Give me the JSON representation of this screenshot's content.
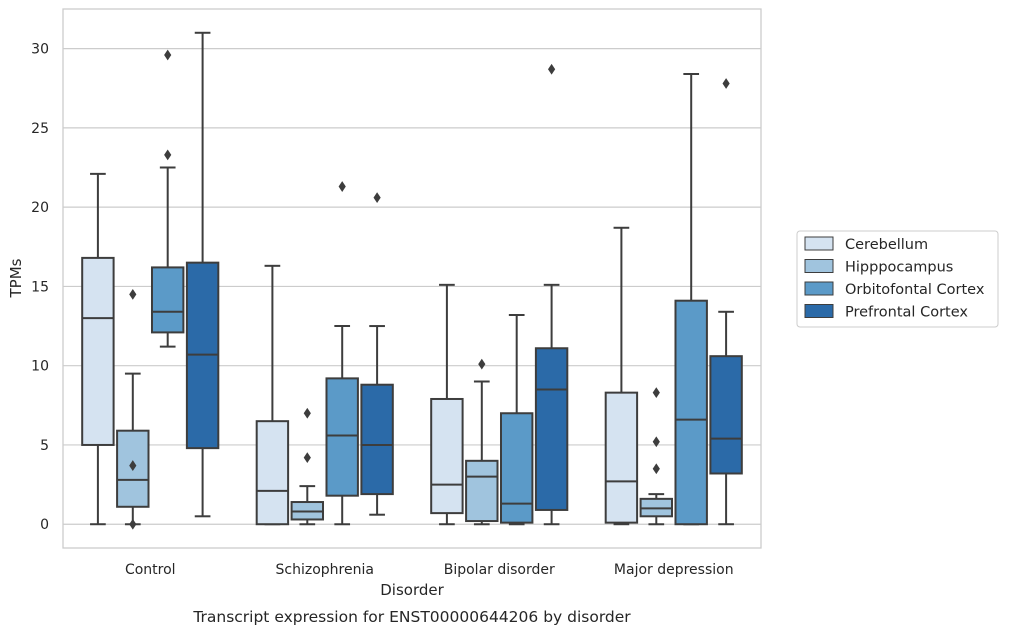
{
  "chart_data": {
    "type": "box",
    "categories": [
      "Control",
      "Schizophrenia",
      "Bipolar disorder",
      "Major depression"
    ],
    "xlabel": "Disorder",
    "ylabel": "TPMs",
    "caption": "Transcript expression for ENST00000644206 by disorder",
    "ylim": [
      -1.5,
      32.5
    ],
    "yticks": [
      0,
      5,
      10,
      15,
      20,
      25,
      30
    ],
    "grid": "horizontal",
    "legend_position": "right",
    "series": [
      {
        "name": "Cerebellum",
        "color": "#d5e3f1",
        "boxes": [
          {
            "min": 0.0,
            "q1": 5.0,
            "median": 13.0,
            "q3": 16.8,
            "max": 22.1,
            "outliers": []
          },
          {
            "min": 0.0,
            "q1": 0.0,
            "median": 2.1,
            "q3": 6.5,
            "max": 16.3,
            "outliers": []
          },
          {
            "min": 0.0,
            "q1": 0.7,
            "median": 2.5,
            "q3": 7.9,
            "max": 15.1,
            "outliers": []
          },
          {
            "min": 0.0,
            "q1": 0.1,
            "median": 2.7,
            "q3": 8.3,
            "max": 18.7,
            "outliers": []
          }
        ]
      },
      {
        "name": "Hipppocampus",
        "color": "#a0c4de",
        "boxes": [
          {
            "min": 0.0,
            "q1": 1.1,
            "median": 2.8,
            "q3": 5.9,
            "max": 9.5,
            "outliers": [
              14.5,
              3.7,
              0.0
            ]
          },
          {
            "min": 0.0,
            "q1": 0.3,
            "median": 0.8,
            "q3": 1.4,
            "max": 2.4,
            "outliers": [
              7.0,
              4.2
            ]
          },
          {
            "min": 0.0,
            "q1": 0.2,
            "median": 3.0,
            "q3": 4.0,
            "max": 9.0,
            "outliers": [
              10.1
            ]
          },
          {
            "min": 0.0,
            "q1": 0.5,
            "median": 1.0,
            "q3": 1.6,
            "max": 1.9,
            "outliers": [
              8.3,
              5.2,
              3.5
            ]
          }
        ]
      },
      {
        "name": "Orbitofontal Cortex",
        "color": "#5b9ac8",
        "boxes": [
          {
            "min": 11.2,
            "q1": 12.1,
            "median": 13.4,
            "q3": 16.2,
            "max": 22.5,
            "outliers": [
              29.6,
              23.3
            ]
          },
          {
            "min": 0.0,
            "q1": 1.8,
            "median": 5.6,
            "q3": 9.2,
            "max": 12.5,
            "outliers": [
              21.3
            ]
          },
          {
            "min": 0.0,
            "q1": 0.1,
            "median": 1.3,
            "q3": 7.0,
            "max": 13.2,
            "outliers": []
          },
          {
            "min": 0.0,
            "q1": 0.0,
            "median": 6.6,
            "q3": 14.1,
            "max": 28.4,
            "outliers": []
          }
        ]
      },
      {
        "name": "Prefrontal Cortex",
        "color": "#2b6aa8",
        "boxes": [
          {
            "min": 0.5,
            "q1": 4.8,
            "median": 10.7,
            "q3": 16.5,
            "max": 31.0,
            "outliers": []
          },
          {
            "min": 0.6,
            "q1": 1.9,
            "median": 5.0,
            "q3": 8.8,
            "max": 12.5,
            "outliers": [
              20.6
            ]
          },
          {
            "min": 0.0,
            "q1": 0.9,
            "median": 8.5,
            "q3": 11.1,
            "max": 15.1,
            "outliers": [
              28.7
            ]
          },
          {
            "min": 0.0,
            "q1": 3.2,
            "median": 5.4,
            "q3": 10.6,
            "max": 13.4,
            "outliers": [
              27.8
            ]
          }
        ]
      }
    ]
  }
}
